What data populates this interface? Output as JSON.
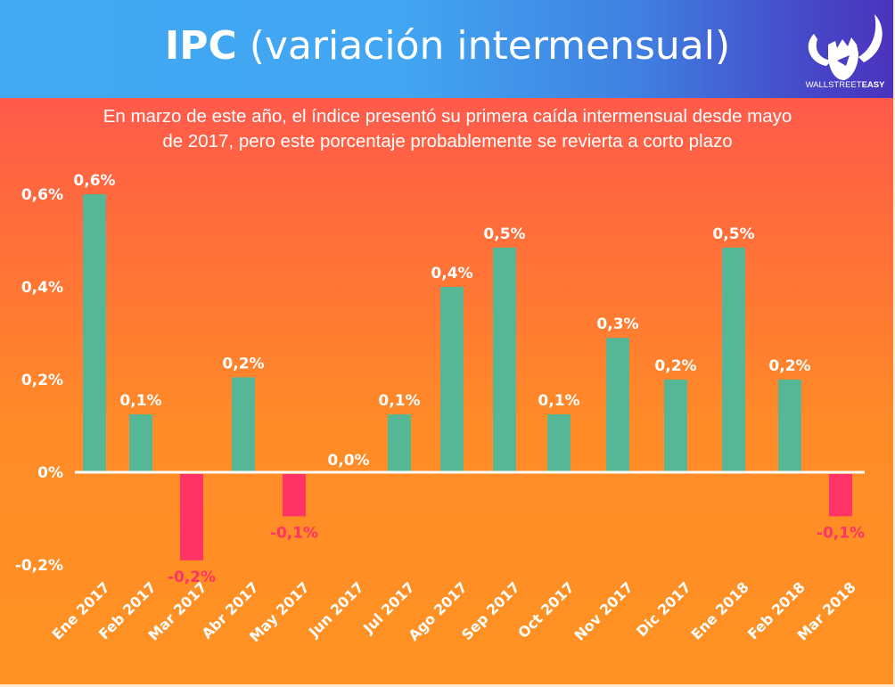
{
  "header": {
    "title_bold": "IPC",
    "title_light": "(variación intermensual)",
    "brand_light": "WALLSTREET",
    "brand_bold": "EASY",
    "logo_icon": "bull-horns-fist-icon"
  },
  "subtitle": {
    "line1": "En marzo de este año, el índice presentó su primera caída intermensual desde mayo",
    "line2": "de 2017, pero este porcentaje probablemente se revierta a corto plazo"
  },
  "colors": {
    "positive": "#55b795",
    "negative": "#ff3366",
    "header_start": "#42a8f2",
    "header_end": "#4a33bd",
    "background_top": "#ff5a4c",
    "background_bottom": "#ff9222"
  },
  "chart_data": {
    "type": "bar",
    "title": "IPC (variación intermensual)",
    "xlabel": "",
    "ylabel": "",
    "ylim": [
      -0.2,
      0.6
    ],
    "yticks": [
      {
        "value": 0.6,
        "label": "0,6%"
      },
      {
        "value": 0.4,
        "label": "0,4%"
      },
      {
        "value": 0.2,
        "label": "0,2%"
      },
      {
        "value": 0.0,
        "label": "0%"
      },
      {
        "value": -0.2,
        "label": "-0,2%"
      }
    ],
    "grid": false,
    "legend": "none",
    "categories": [
      "Ene 2017",
      "Feb 2017",
      "Mar 2017",
      "Abr 2017",
      "May 2017",
      "Jun 2017",
      "Jul 2017",
      "Ago 2017",
      "Sep 2017",
      "Oct 2017",
      "Nov 2017",
      "Dic 2017",
      "Ene 2018",
      "Feb 2018",
      "Mar 2018"
    ],
    "values": [
      0.6,
      0.125,
      -0.19,
      0.205,
      -0.095,
      0.0,
      0.125,
      0.4,
      0.485,
      0.125,
      0.29,
      0.2,
      0.485,
      0.2,
      -0.095
    ],
    "labels": [
      "0,6%",
      "0,1%",
      "-0,2%",
      "0,2%",
      "-0,1%",
      "0,0%",
      "0,1%",
      "0,4%",
      "0,5%",
      "0,1%",
      "0,3%",
      "0,2%",
      "0,5%",
      "0,2%",
      "-0,1%"
    ]
  }
}
